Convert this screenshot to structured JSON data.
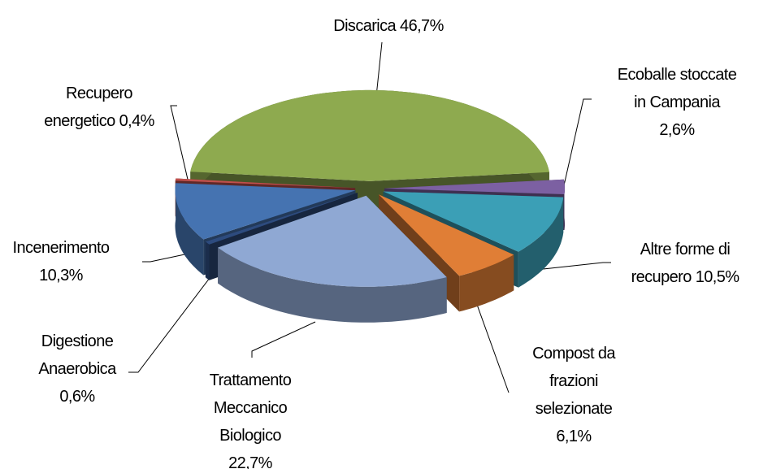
{
  "chart_data": {
    "type": "pie3d",
    "categories": [
      "Discarica",
      "Ecoballe stoccate in Campania",
      "Altre forme di recupero",
      "Compost da frazioni selezionate",
      "Trattamento Meccanico Biologico",
      "Digestione Anaerobica",
      "Incenerimento",
      "Recupero energetico"
    ],
    "values": [
      46.7,
      2.6,
      10.5,
      6.1,
      22.7,
      0.6,
      10.3,
      0.4
    ],
    "value_labels": [
      "46,7%",
      "2,6%",
      "10,5%",
      "6,1%",
      "22,7%",
      "0,6%",
      "10,3%",
      "0,4%"
    ],
    "colors": [
      "#8eaa4f",
      "#7c60a2",
      "#3b9fb6",
      "#e07e36",
      "#8fa8d3",
      "#2d4b7e",
      "#4573b1",
      "#c0504d"
    ]
  }
}
